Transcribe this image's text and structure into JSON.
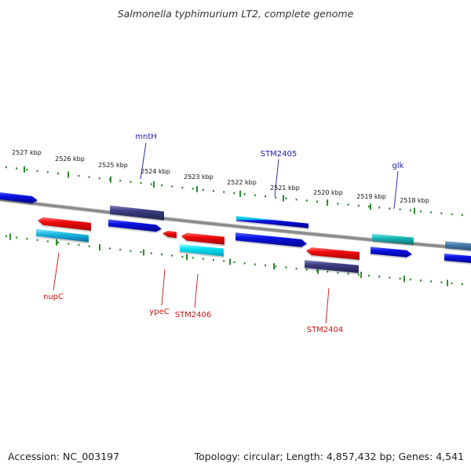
{
  "title": "Salmonella typhimurium LT2, complete genome",
  "accession": "Accession: NC_003197",
  "summary": "Topology: circular; Length: 4,857,432 bp; Genes: 4,541",
  "colors": {
    "backbone": "#8a8a8a",
    "tick": "#2e8b2e",
    "forward_label": "#1a1aa8",
    "reverse_label": "#cc1111",
    "blue": "#0a14e6",
    "navy": "#3d3d85",
    "red": "#ee0d0d",
    "cyan": "#18b8e0",
    "aqua": "#00e0f0",
    "teal": "#18b8b8",
    "steel": "#4478a8"
  },
  "kbp_ticks": [
    "2527 kbp",
    "2526 kbp",
    "2525 kbp",
    "2524 kbp",
    "2523 kbp",
    "2522 kbp",
    "2521 kbp",
    "2520 kbp",
    "2519 kbp",
    "2518 kbp"
  ],
  "gene_labels": [
    {
      "name": "mntH",
      "strand": "forward"
    },
    {
      "name": "STM2405",
      "strand": "forward"
    },
    {
      "name": "glk",
      "strand": "forward"
    },
    {
      "name": "nupC",
      "strand": "reverse"
    },
    {
      "name": "ypeC",
      "strand": "reverse"
    },
    {
      "name": "STM2406",
      "strand": "reverse"
    },
    {
      "name": "STM2404",
      "strand": "reverse"
    }
  ]
}
